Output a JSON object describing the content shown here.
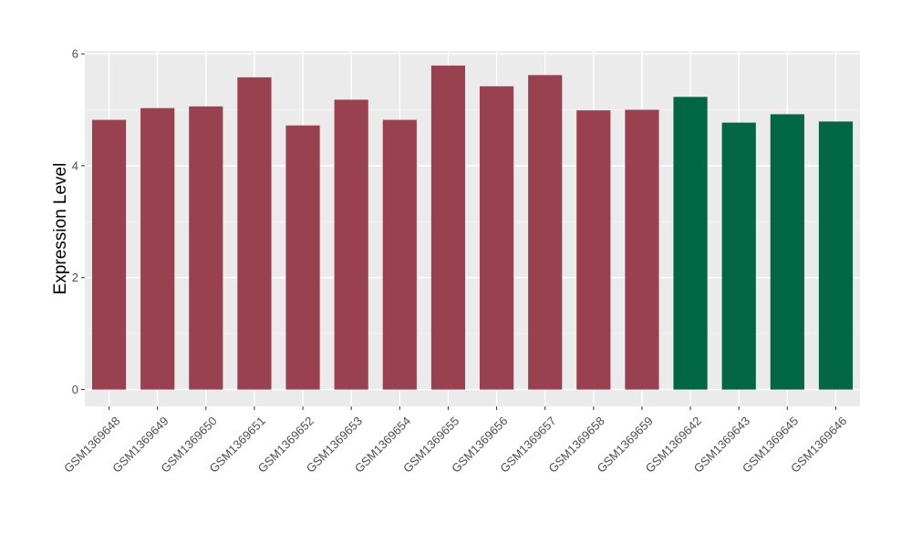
{
  "chart_data": {
    "type": "bar",
    "title": "",
    "xlabel": "",
    "ylabel": "Expression Level",
    "ylim": [
      -0.3,
      6.05
    ],
    "yticks": [
      0,
      2,
      4,
      6
    ],
    "categories": [
      "GSM1369648",
      "GSM1369649",
      "GSM1369650",
      "GSM1369651",
      "GSM1369652",
      "GSM1369653",
      "GSM1369654",
      "GSM1369655",
      "GSM1369656",
      "GSM1369657",
      "GSM1369658",
      "GSM1369659",
      "GSM1369642",
      "GSM1369643",
      "GSM1369645",
      "GSM1369646"
    ],
    "values": [
      4.82,
      5.03,
      5.06,
      5.58,
      4.72,
      5.18,
      4.82,
      5.79,
      5.42,
      5.62,
      4.99,
      5.0,
      5.23,
      4.77,
      4.92,
      4.79
    ],
    "bar_colors": [
      "#9a4150",
      "#9a4150",
      "#9a4150",
      "#9a4150",
      "#9a4150",
      "#9a4150",
      "#9a4150",
      "#9a4150",
      "#9a4150",
      "#9a4150",
      "#9a4150",
      "#9a4150",
      "#006644",
      "#006644",
      "#006644",
      "#006644"
    ],
    "panel_background": "#ebebeb",
    "grid": true,
    "legend": "none"
  }
}
